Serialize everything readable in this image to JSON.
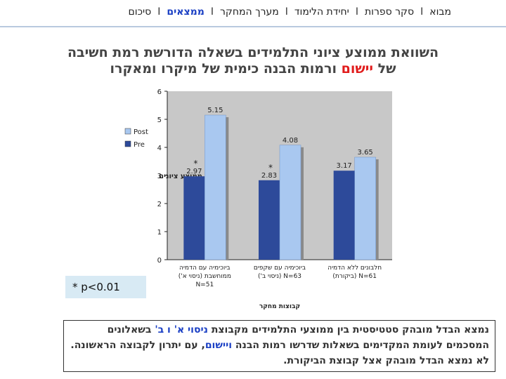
{
  "nav": {
    "items": [
      {
        "label": "מבוא",
        "active": false
      },
      {
        "label": "סקר ספרות",
        "active": false
      },
      {
        "label": "יחידת הלימוד",
        "active": false
      },
      {
        "label": "מערך המחקר",
        "active": false
      },
      {
        "label": "ממצאים",
        "active": true
      },
      {
        "label": "סיכום",
        "active": false
      }
    ],
    "separator": "I"
  },
  "heading": {
    "line1": "השוואת ממוצע ציוני התלמידים בשאלה הדורשת רמת חשיבה",
    "line2_prefix": "של ",
    "line2_highlight": "יישום",
    "line2_suffix": " ורמות הבנה כימית של מיקרו ומאקרו"
  },
  "significance_note": "* p<0.01",
  "summary": {
    "p1": "נמצא הבדל מובהק סטטיסטית בין ממוצעי התלמידים מקבוצת ",
    "p2": "ניסוי א' ו ב'",
    "p3": " בשאלונים המסכמים לעומת המקדימים בשאלות שדרשו רמות הבנה ",
    "p4": "ויישום",
    "p5": ", עם יתרון לקבוצה הראשונה. לא נמצא הבדל מובהק אצל קבוצת הביקורת."
  },
  "colors": {
    "pre": "#2d4a9a",
    "post": "#a9c8f0",
    "plot_bg": "#c8c8c8",
    "accent": "#e11c1c",
    "nav_active": "#1a3fc4"
  },
  "chart_data": {
    "type": "bar",
    "categories": [
      [
        "ביוכימיה עם הדמיה",
        "ממוחשבת (ניסוי א')",
        "N=51"
      ],
      [
        "ביוכימיה עם שקפים",
        "N=63 (ניסוי ב')"
      ],
      [
        "חלבונים ללא הדמיה",
        "N=61 (ביקורת)"
      ]
    ],
    "series": [
      {
        "name": "Pre",
        "values": [
          2.97,
          2.83,
          3.17
        ]
      },
      {
        "name": "Post",
        "values": [
          5.15,
          4.08,
          3.65
        ]
      }
    ],
    "data_labels": {
      "Pre": [
        "2.97",
        "2.83",
        "3.17"
      ],
      "Post": [
        "5.15",
        "4.08",
        "3.65"
      ]
    },
    "significance": [
      "*",
      "*",
      ""
    ],
    "ylim": [
      0,
      6
    ],
    "yticks": [
      0,
      1,
      2,
      3,
      4,
      5,
      6
    ],
    "ylabel": "ממוצע ציונים",
    "xlabel": "קבוצות מחקר",
    "grid": false,
    "legend": "right"
  }
}
